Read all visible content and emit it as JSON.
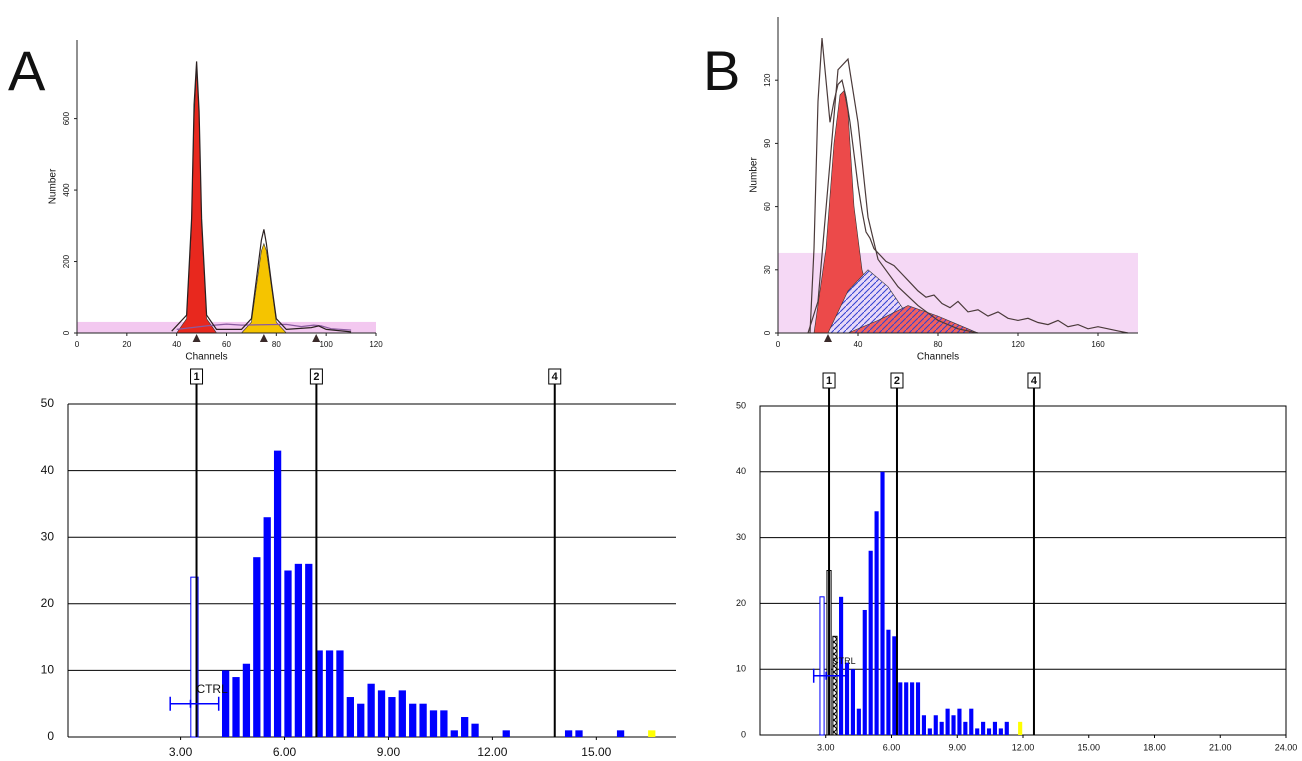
{
  "chart_data": [
    {
      "type": "line",
      "panel": "A",
      "xlabel": "Channels",
      "ylabel": "Number",
      "xlim": [
        0,
        120
      ],
      "ylim": [
        0,
        820
      ],
      "xticks": [
        0,
        20,
        40,
        60,
        80,
        100,
        120
      ],
      "yticks": [
        0,
        200,
        400,
        600
      ],
      "band": {
        "y": [
          0,
          31
        ],
        "color": "#f3c8f0"
      },
      "peak_markers": [
        48,
        75,
        96
      ],
      "series": [
        {
          "color": "#e8281e",
          "fill": true,
          "x": [
            40,
            44,
            46,
            47,
            48,
            49,
            50,
            52,
            56
          ],
          "values": [
            0,
            40,
            300,
            600,
            740,
            600,
            300,
            40,
            0
          ]
        },
        {
          "color": "#f5c400",
          "fill": true,
          "x": [
            66,
            70,
            72,
            74,
            75,
            76,
            78,
            80,
            84
          ],
          "values": [
            0,
            30,
            130,
            230,
            250,
            230,
            130,
            30,
            0
          ]
        },
        {
          "color": "#8a5aa0",
          "fill": false,
          "x": [
            40,
            52,
            60,
            66,
            84,
            90,
            95,
            98,
            102,
            110
          ],
          "values": [
            10,
            20,
            25,
            22,
            24,
            18,
            22,
            20,
            12,
            8
          ]
        },
        {
          "color": "#2a2020",
          "fill": false,
          "x": [
            38,
            44,
            46,
            47,
            48,
            49,
            50,
            52,
            56,
            66,
            70,
            72,
            74,
            75,
            76,
            78,
            80,
            84,
            94,
            97,
            100,
            110
          ],
          "values": [
            5,
            50,
            320,
            640,
            760,
            620,
            320,
            50,
            10,
            10,
            40,
            150,
            260,
            290,
            250,
            140,
            40,
            10,
            15,
            20,
            10,
            3
          ]
        }
      ]
    },
    {
      "type": "bar",
      "xlim": [
        -0.25,
        17.3
      ],
      "ylim": [
        0,
        50
      ],
      "xticks": [
        {
          "value": 3,
          "label": "3.00"
        },
        {
          "value": 6,
          "label": "6.00"
        },
        {
          "value": 9,
          "label": "9.00"
        },
        {
          "value": 12,
          "label": "12.00"
        },
        {
          "value": 15,
          "label": "15.00"
        }
      ],
      "yticks": [
        0,
        10,
        20,
        30,
        40,
        50
      ],
      "grid": true,
      "frame": false,
      "markers": [
        {
          "label": "1",
          "x": 3.46
        },
        {
          "label": "2",
          "x": 6.92
        },
        {
          "label": "4",
          "x": 13.8
        }
      ],
      "ctrl": {
        "label": "CTRL",
        "x": 3.4,
        "xerr": 0.7,
        "y": 5
      },
      "series": [
        {
          "color": "#0000ff",
          "style": "hollow",
          "x": [
            3.4
          ],
          "values": [
            24
          ]
        },
        {
          "color": "#0000ff",
          "style": "solid",
          "x": [
            4.3,
            4.6,
            4.9,
            5.2,
            5.5,
            5.8,
            6.1,
            6.4,
            6.7,
            7.0,
            7.3,
            7.6,
            7.9,
            8.2,
            8.5,
            8.8,
            9.1,
            9.4,
            9.7,
            10.0,
            10.3,
            10.6,
            10.9,
            11.2,
            11.5,
            12.4,
            14.2,
            14.5,
            15.7
          ],
          "values": [
            10,
            9,
            11,
            27,
            33,
            43,
            25,
            26,
            26,
            13,
            13,
            13,
            6,
            5,
            8,
            7,
            6,
            7,
            5,
            5,
            4,
            4,
            1,
            3,
            2,
            1,
            1,
            1,
            1
          ]
        },
        {
          "color": "#ffff00",
          "style": "solid",
          "x": [
            16.6
          ],
          "values": [
            1
          ]
        }
      ]
    },
    {
      "type": "line",
      "panel": "B",
      "xlabel": "Channels",
      "ylabel": "Number",
      "xlim": [
        0,
        180
      ],
      "ylim": [
        0,
        150
      ],
      "xticks": [
        0,
        40,
        80,
        120,
        160
      ],
      "yticks": [
        0,
        30,
        60,
        90,
        120
      ],
      "band": {
        "y": [
          0,
          38
        ],
        "color": "#f5d8f5"
      },
      "peak_markers": [
        25
      ],
      "series": [
        {
          "color": "#ec4a4a",
          "fill": true,
          "x": [
            18,
            24,
            28,
            31,
            33,
            35,
            38,
            42,
            48,
            55
          ],
          "values": [
            0,
            40,
            90,
            113,
            115,
            105,
            60,
            30,
            10,
            0
          ]
        },
        {
          "color": "#e8d8f8",
          "fill": true,
          "hatch": "#3040d0",
          "x": [
            25,
            35,
            45,
            55,
            65,
            75
          ],
          "values": [
            0,
            20,
            30,
            22,
            8,
            0
          ]
        },
        {
          "color": "#f06060",
          "fill": true,
          "hatch": "#3040d0",
          "x": [
            35,
            50,
            65,
            80,
            95,
            100
          ],
          "values": [
            0,
            6,
            13,
            8,
            2,
            0
          ]
        },
        {
          "color": "#4a3a3a",
          "fill": false,
          "x": [
            15,
            20,
            25,
            30,
            35,
            40,
            45,
            50,
            60,
            70,
            80,
            90,
            100
          ],
          "values": [
            0,
            15,
            70,
            125,
            130,
            100,
            55,
            35,
            22,
            13,
            6,
            2,
            0
          ]
        },
        {
          "color": "#4a3a3a",
          "fill": false,
          "x": [
            16,
            18,
            20,
            22,
            24,
            26,
            28,
            30,
            32,
            34,
            36,
            38,
            40,
            42,
            44,
            46,
            48,
            50,
            54,
            58,
            62,
            66,
            70,
            74,
            78,
            82,
            86,
            90,
            95,
            100,
            105,
            110,
            115,
            120,
            125,
            130,
            135,
            140,
            145,
            150,
            155,
            160,
            165,
            170,
            175
          ],
          "values": [
            0,
            40,
            110,
            140,
            120,
            100,
            110,
            118,
            120,
            112,
            100,
            85,
            70,
            58,
            48,
            45,
            40,
            38,
            34,
            32,
            28,
            24,
            20,
            17,
            18,
            14,
            12,
            15,
            10,
            11,
            8,
            10,
            7,
            6,
            7,
            5,
            4,
            6,
            3,
            4,
            2,
            3,
            2,
            1,
            0
          ]
        }
      ]
    },
    {
      "type": "bar",
      "xlim": [
        0,
        24
      ],
      "ylim": [
        0,
        50
      ],
      "xticks": [
        {
          "value": 3,
          "label": "3.00"
        },
        {
          "value": 6,
          "label": "6.00"
        },
        {
          "value": 9,
          "label": "9.00"
        },
        {
          "value": 12,
          "label": "12.00"
        },
        {
          "value": 15,
          "label": "15.00"
        },
        {
          "value": 18,
          "label": "18.00"
        },
        {
          "value": 21,
          "label": "21.00"
        },
        {
          "value": 24,
          "label": "24.00"
        }
      ],
      "yticks": [
        0,
        10,
        20,
        30,
        40,
        50
      ],
      "grid": true,
      "frame": true,
      "markers": [
        {
          "label": "1",
          "x": 3.15
        },
        {
          "label": "2",
          "x": 6.25
        },
        {
          "label": "4",
          "x": 12.5
        }
      ],
      "ctrl": {
        "label": "CTRL",
        "x": 3.2,
        "xerr": 0.75,
        "y": 9
      },
      "series": [
        {
          "color": "#0000ff",
          "style": "hollow",
          "x": [
            2.83
          ],
          "values": [
            21
          ]
        },
        {
          "color": "#000000",
          "style": "hollow",
          "x": [
            3.15
          ],
          "values": [
            25
          ]
        },
        {
          "color": "#000000",
          "style": "hatch",
          "x": [
            3.42
          ],
          "values": [
            15
          ]
        },
        {
          "color": "#0000ff",
          "style": "solid",
          "x": [
            3.7,
            3.97,
            4.24,
            4.51,
            4.78,
            5.05,
            5.32,
            5.59,
            5.86,
            6.13,
            6.4,
            6.67,
            6.94,
            7.21,
            7.48,
            7.75,
            8.02,
            8.29,
            8.56,
            8.83,
            9.1,
            9.37,
            9.64,
            9.91,
            10.18,
            10.45,
            10.72,
            10.99,
            11.26
          ],
          "values": [
            21,
            11,
            10,
            4,
            19,
            28,
            34,
            40,
            16,
            15,
            8,
            8,
            8,
            8,
            3,
            1,
            3,
            2,
            4,
            3,
            4,
            2,
            4,
            1,
            2,
            1,
            2,
            1,
            2
          ]
        },
        {
          "color": "#ffff00",
          "style": "solid",
          "x": [
            11.87
          ],
          "values": [
            2
          ]
        }
      ]
    }
  ]
}
